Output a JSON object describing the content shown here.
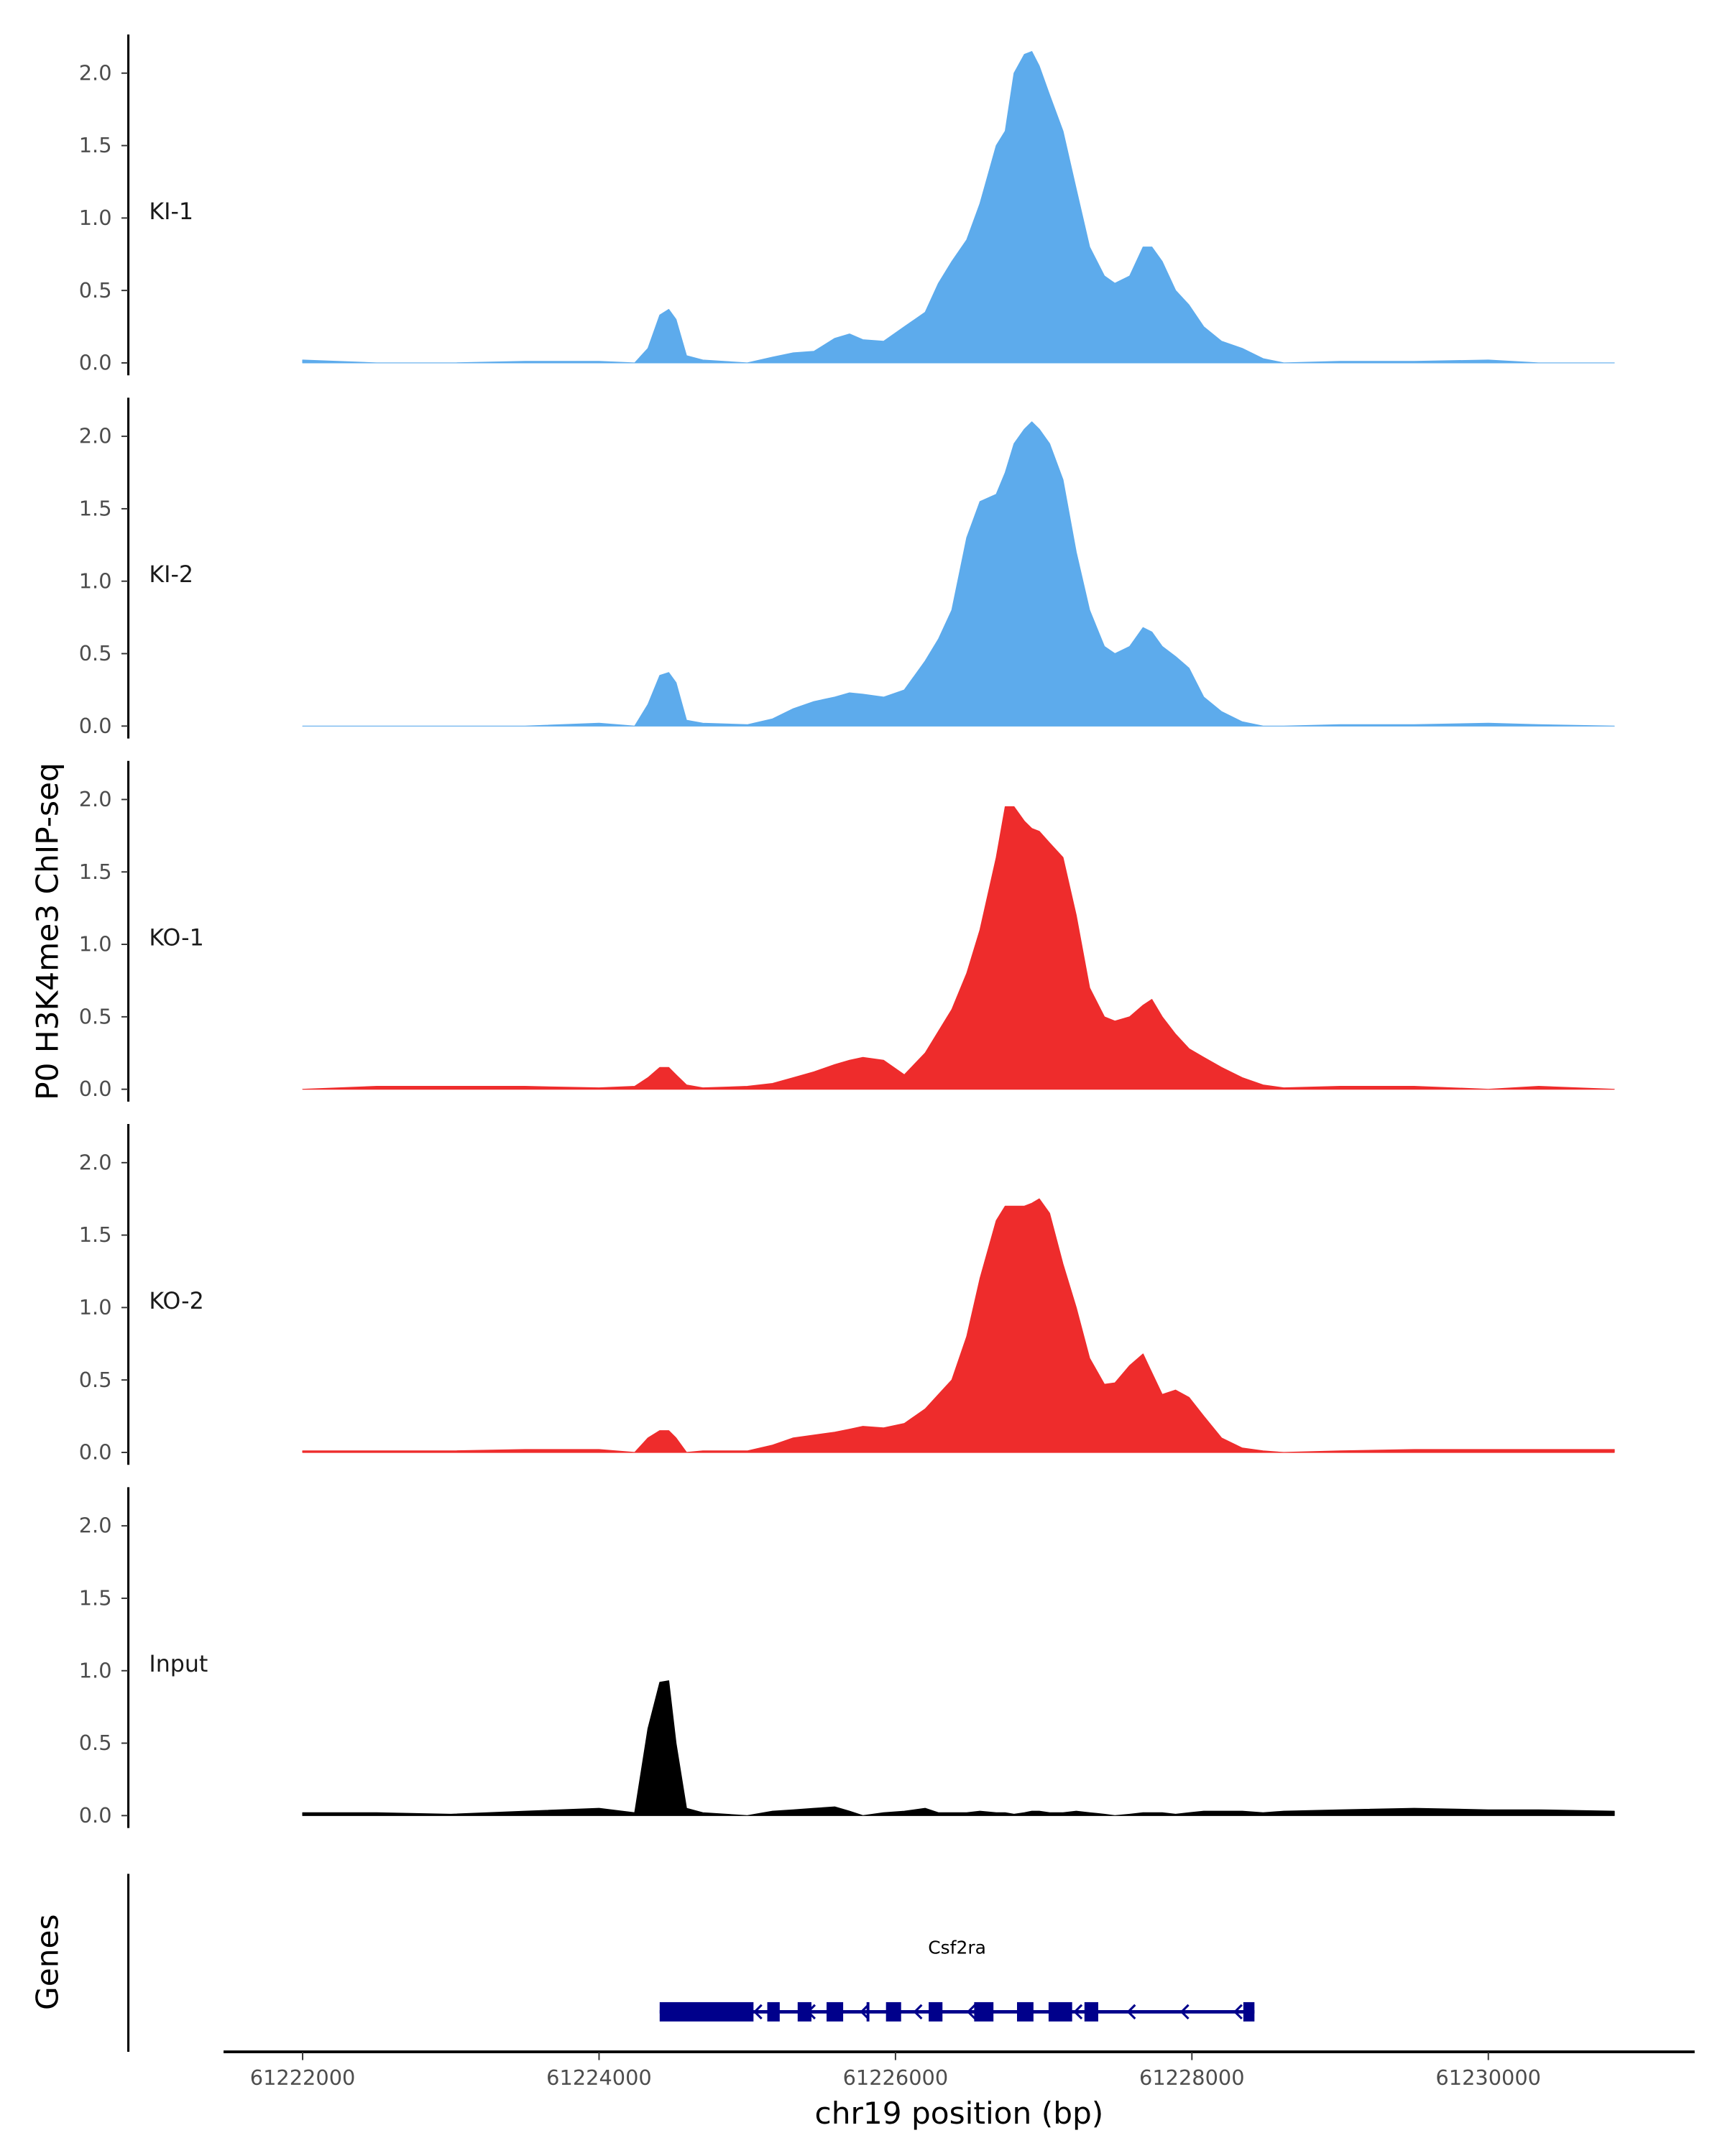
{
  "chart_data": {
    "type": "area",
    "title": "",
    "xlabel": "chr19 position (bp)",
    "ylabel": "P0 H3K4me3 ChIP-seq",
    "gene_panel_label": "Genes",
    "xlim": [
      61221500,
      61231400
    ],
    "ylim": [
      0,
      2.2
    ],
    "xticks": [
      61222000,
      61224000,
      61226000,
      61228000,
      61230000
    ],
    "xtick_labels": [
      "61222000",
      "61224000",
      "61226000",
      "61228000",
      "61230000"
    ],
    "yticks": [
      0,
      0.5,
      1.0,
      1.5,
      2.0
    ],
    "ytick_labels": [
      "0.0",
      "0.5",
      "1.0",
      "1.5",
      "2.0"
    ],
    "x": [
      61222000,
      61222500,
      61223000,
      61223500,
      61224000,
      61224240,
      61224330,
      61224410,
      61224470,
      61224520,
      61224590,
      61224700,
      61225000,
      61225170,
      61225310,
      61225450,
      61225590,
      61225690,
      61225780,
      61225920,
      61226060,
      61226200,
      61226290,
      61226380,
      61226480,
      61226570,
      61226680,
      61226740,
      61226800,
      61226870,
      61226920,
      61226970,
      61227040,
      61227130,
      61227220,
      61227310,
      61227410,
      61227480,
      61227580,
      61227670,
      61227730,
      61227800,
      61227890,
      61227980,
      61228080,
      61228200,
      61228340,
      61228480,
      61228620,
      61229000,
      61229500,
      61230000,
      61230340,
      61230850
    ],
    "series": [
      {
        "name": "KI-1",
        "color": "#5DABEC",
        "values": [
          0.02,
          0,
          0,
          0.01,
          0.01,
          0,
          0.1,
          0.33,
          0.37,
          0.3,
          0.05,
          0.02,
          0,
          0.04,
          0.07,
          0.08,
          0.17,
          0.2,
          0.16,
          0.15,
          0.25,
          0.35,
          0.55,
          0.7,
          0.85,
          1.1,
          1.5,
          1.6,
          2.0,
          2.13,
          2.15,
          2.05,
          1.85,
          1.6,
          1.2,
          0.8,
          0.6,
          0.55,
          0.6,
          0.8,
          0.8,
          0.7,
          0.5,
          0.4,
          0.25,
          0.15,
          0.1,
          0.03,
          0,
          0.01,
          0.01,
          0.02,
          0,
          0
        ]
      },
      {
        "name": "KI-2",
        "color": "#5DABEC",
        "values": [
          0,
          0,
          0,
          0,
          0.02,
          0,
          0.15,
          0.35,
          0.37,
          0.3,
          0.04,
          0.02,
          0.01,
          0.05,
          0.12,
          0.17,
          0.2,
          0.23,
          0.22,
          0.2,
          0.25,
          0.45,
          0.6,
          0.8,
          1.3,
          1.55,
          1.6,
          1.75,
          1.95,
          2.05,
          2.1,
          2.05,
          1.95,
          1.7,
          1.2,
          0.8,
          0.55,
          0.5,
          0.55,
          0.68,
          0.65,
          0.55,
          0.48,
          0.4,
          0.2,
          0.1,
          0.03,
          0,
          0,
          0.01,
          0.01,
          0.02,
          0.01,
          0
        ]
      },
      {
        "name": "KO-1",
        "color": "#EE2C2C",
        "values": [
          0,
          0.02,
          0.02,
          0.02,
          0.01,
          0.02,
          0.08,
          0.15,
          0.15,
          0.1,
          0.03,
          0.01,
          0.02,
          0.04,
          0.08,
          0.12,
          0.17,
          0.2,
          0.22,
          0.2,
          0.1,
          0.25,
          0.4,
          0.55,
          0.8,
          1.1,
          1.6,
          1.95,
          1.95,
          1.85,
          1.8,
          1.78,
          1.7,
          1.6,
          1.2,
          0.7,
          0.5,
          0.47,
          0.5,
          0.58,
          0.62,
          0.5,
          0.38,
          0.28,
          0.22,
          0.15,
          0.08,
          0.03,
          0.01,
          0.02,
          0.02,
          0,
          0.02,
          0
        ]
      },
      {
        "name": "KO-2",
        "color": "#EE2C2C",
        "values": [
          0.01,
          0.01,
          0.01,
          0.02,
          0.02,
          0,
          0.1,
          0.15,
          0.15,
          0.1,
          0,
          0.01,
          0.01,
          0.05,
          0.1,
          0.12,
          0.14,
          0.16,
          0.18,
          0.17,
          0.2,
          0.3,
          0.4,
          0.5,
          0.8,
          1.2,
          1.6,
          1.7,
          1.7,
          1.7,
          1.72,
          1.75,
          1.65,
          1.3,
          1.0,
          0.65,
          0.47,
          0.48,
          0.6,
          0.68,
          0.55,
          0.4,
          0.43,
          0.38,
          0.25,
          0.1,
          0.03,
          0.01,
          0,
          0.01,
          0.02,
          0.02,
          0.02,
          0.02
        ]
      },
      {
        "name": "Input",
        "color": "#000000",
        "values": [
          0.02,
          0.02,
          0.01,
          0.03,
          0.05,
          0.02,
          0.6,
          0.92,
          0.93,
          0.5,
          0.05,
          0.02,
          0,
          0.03,
          0.04,
          0.05,
          0.06,
          0.03,
          0,
          0.02,
          0.03,
          0.05,
          0.02,
          0.02,
          0.02,
          0.03,
          0.02,
          0.02,
          0.01,
          0.02,
          0.03,
          0.03,
          0.02,
          0.02,
          0.03,
          0.02,
          0.01,
          0,
          0.01,
          0.02,
          0.02,
          0.02,
          0.01,
          0.02,
          0.03,
          0.03,
          0.03,
          0.02,
          0.03,
          0.04,
          0.05,
          0.04,
          0.04,
          0.03
        ]
      }
    ],
    "gene": {
      "name": "Csf2ra",
      "color": "#00008B",
      "strand": "-",
      "start": 61224409,
      "end": 61228422,
      "exons": [
        [
          61224409,
          61225042
        ],
        [
          61225135,
          61225219
        ],
        [
          61225340,
          61225433
        ],
        [
          61225535,
          61225647
        ],
        [
          61225805,
          61225824
        ],
        [
          61225936,
          61226038
        ],
        [
          61226224,
          61226317
        ],
        [
          61226531,
          61226661
        ],
        [
          61226820,
          61226931
        ],
        [
          61227033,
          61227192
        ],
        [
          61227275,
          61227368
        ],
        [
          61228347,
          61228422
        ]
      ]
    }
  }
}
